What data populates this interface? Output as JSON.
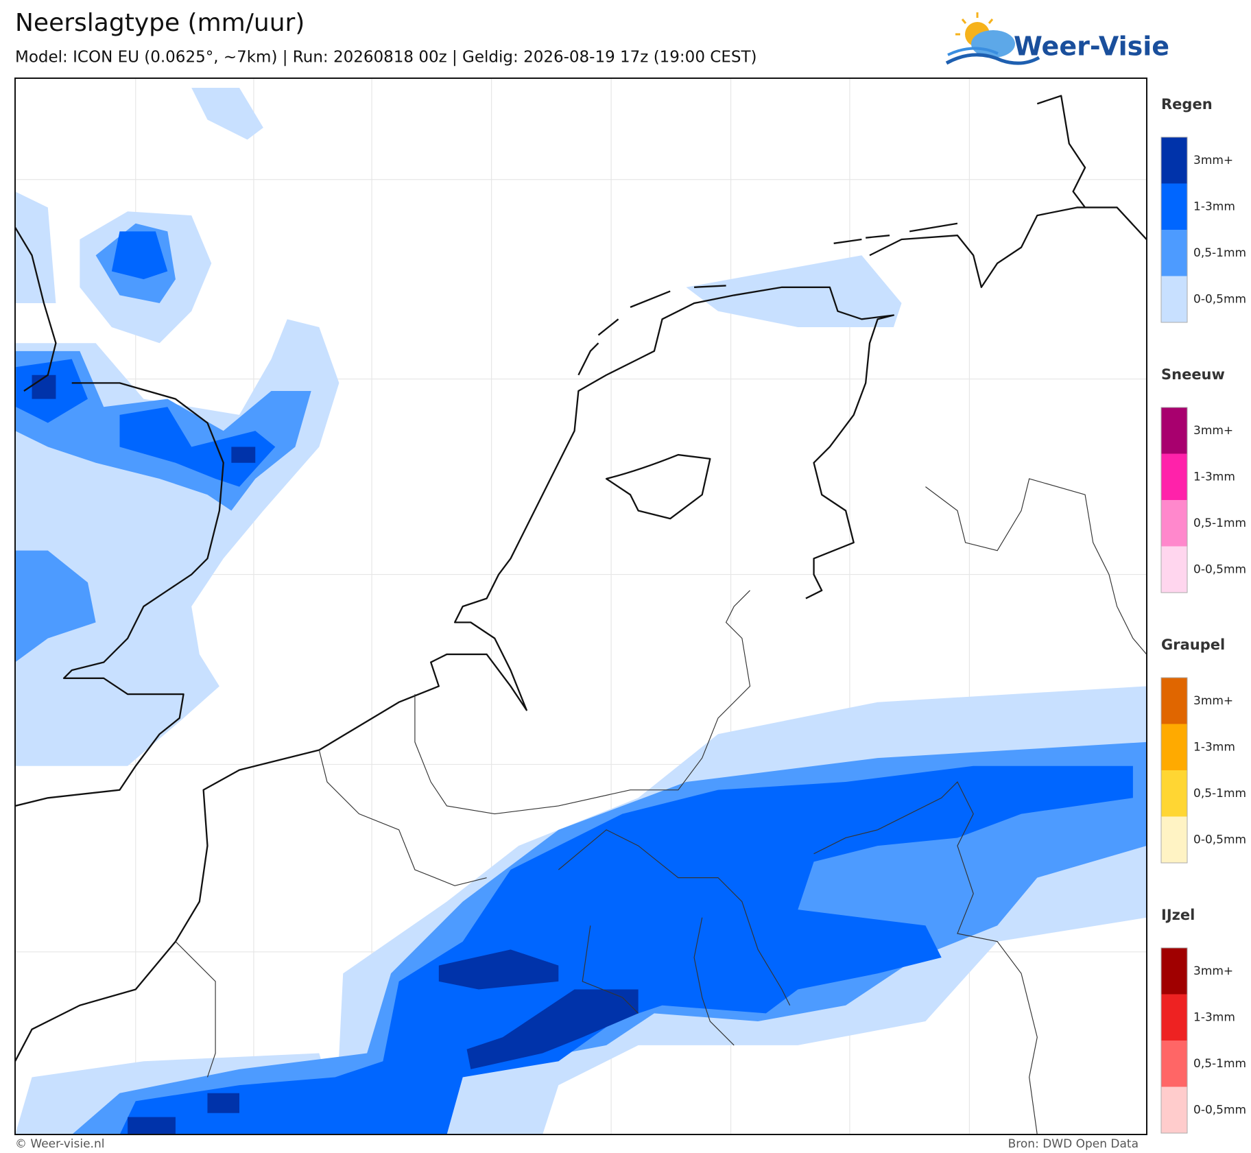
{
  "header": {
    "title": "Neerslagtype (mm/uur)",
    "subtitle": "Model: ICON EU (0.0625°, ~7km)  |  Run: 20260818 00z  |  Geldig: 2026-08-19 17z (19:00 CEST)",
    "logo": "Weer-Visie"
  },
  "legend": {
    "groups": [
      {
        "title": "Regen",
        "items": [
          {
            "label": "3mm+",
            "color": "#0033aa"
          },
          {
            "label": "1-3mm",
            "color": "#0066ff"
          },
          {
            "label": "0,5-1mm",
            "color": "#4d9bff"
          },
          {
            "label": "0-0,5mm",
            "color": "#c8e0ff"
          }
        ]
      },
      {
        "title": "Sneeuw",
        "items": [
          {
            "label": "3mm+",
            "color": "#a8006e"
          },
          {
            "label": "1-3mm",
            "color": "#ff22aa"
          },
          {
            "label": "0,5-1mm",
            "color": "#ff88cc"
          },
          {
            "label": "0-0,5mm",
            "color": "#ffd6ee"
          }
        ]
      },
      {
        "title": "Graupel",
        "items": [
          {
            "label": "3mm+",
            "color": "#e06600"
          },
          {
            "label": "1-3mm",
            "color": "#ffaa00"
          },
          {
            "label": "0,5-1mm",
            "color": "#ffd633"
          },
          {
            "label": "0-0,5mm",
            "color": "#fff3c4"
          }
        ]
      },
      {
        "title": "IJzel",
        "items": [
          {
            "label": "3mm+",
            "color": "#a00000"
          },
          {
            "label": "1-3mm",
            "color": "#ee2222"
          },
          {
            "label": "0,5-1mm",
            "color": "#ff6666"
          },
          {
            "label": "0-0,5mm",
            "color": "#ffcccc"
          }
        ]
      }
    ]
  },
  "footer": {
    "credit": "© Weer-visie.nl",
    "source": "Bron: DWD Open Data"
  }
}
